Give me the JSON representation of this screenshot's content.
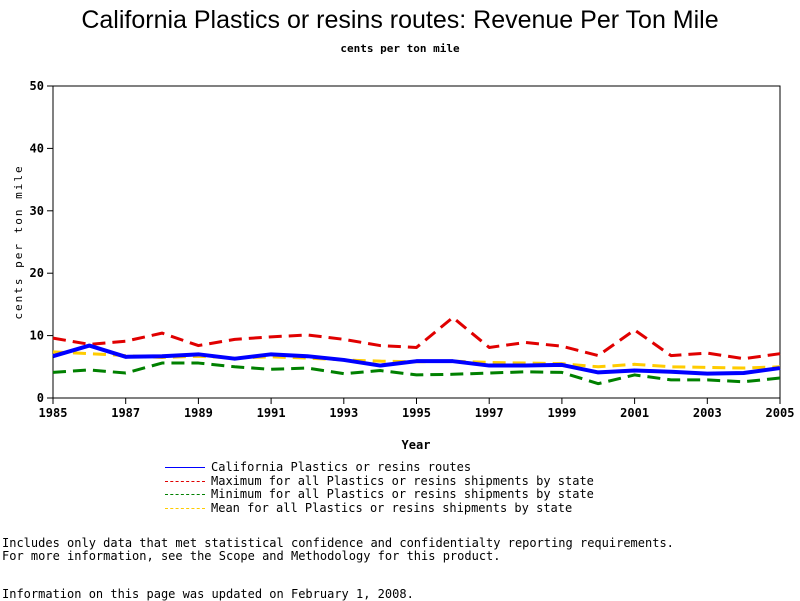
{
  "chart_data": {
    "type": "line",
    "title": "California Plastics or resins routes: Revenue Per Ton Mile",
    "subtitle": "cents per ton mile",
    "xlabel": "Year",
    "ylabel": "cents per ton mile",
    "xlim": [
      1985,
      2005
    ],
    "ylim": [
      0,
      50
    ],
    "x_ticks": [
      "1985",
      "1987",
      "1989",
      "1991",
      "1993",
      "1995",
      "1997",
      "1999",
      "2001",
      "2003",
      "2005"
    ],
    "y_ticks": [
      "0",
      "10",
      "20",
      "30",
      "40",
      "50"
    ],
    "x": [
      1985,
      1986,
      1987,
      1988,
      1989,
      1990,
      1991,
      1992,
      1993,
      1994,
      1995,
      1996,
      1997,
      1998,
      1999,
      2000,
      2001,
      2002,
      2003,
      2004,
      2005
    ],
    "grid": false,
    "legend_position": "bottom",
    "series": [
      {
        "name": "Mean for all Plastics or resins shipments by state",
        "color": "#ffcc00",
        "style": "dashed",
        "values": [
          7.4,
          7.1,
          6.8,
          6.5,
          6.7,
          6.4,
          6.6,
          6.4,
          6.1,
          5.9,
          5.8,
          5.9,
          5.7,
          5.6,
          5.5,
          5.0,
          5.4,
          5.0,
          4.9,
          4.8,
          5.0
        ]
      },
      {
        "name": "Minimum for all Plastics or resins shipments by state",
        "color": "#008000",
        "style": "dashed",
        "values": [
          4.1,
          4.5,
          4.0,
          5.6,
          5.6,
          5.0,
          4.6,
          4.8,
          3.9,
          4.4,
          3.7,
          3.8,
          4.0,
          4.2,
          4.1,
          2.3,
          3.7,
          2.9,
          2.9,
          2.6,
          3.2
        ]
      },
      {
        "name": "Maximum for all Plastics or resins shipments by state",
        "color": "#e00000",
        "style": "dashed",
        "values": [
          9.6,
          8.6,
          9.1,
          10.4,
          8.4,
          9.4,
          9.8,
          10.1,
          9.4,
          8.4,
          8.1,
          12.9,
          8.1,
          8.9,
          8.3,
          6.8,
          10.9,
          6.8,
          7.2,
          6.3,
          7.1
        ]
      },
      {
        "name": "California Plastics or resins routes",
        "color": "#0000ff",
        "style": "solid",
        "values": [
          6.7,
          8.4,
          6.6,
          6.7,
          7.0,
          6.3,
          7.0,
          6.7,
          6.1,
          5.2,
          5.9,
          5.9,
          5.2,
          5.2,
          5.3,
          4.1,
          4.4,
          4.2,
          3.9,
          4.0,
          4.8
        ]
      }
    ]
  },
  "legend_order": [
    3,
    2,
    1,
    0
  ],
  "notes": {
    "line1": "Includes only data that met statistical confidence and confidentialty reporting requirements.",
    "line2": "For more information, see the Scope and Methodology for this product.",
    "line3": "Information on this page was updated on February 1, 2008."
  }
}
